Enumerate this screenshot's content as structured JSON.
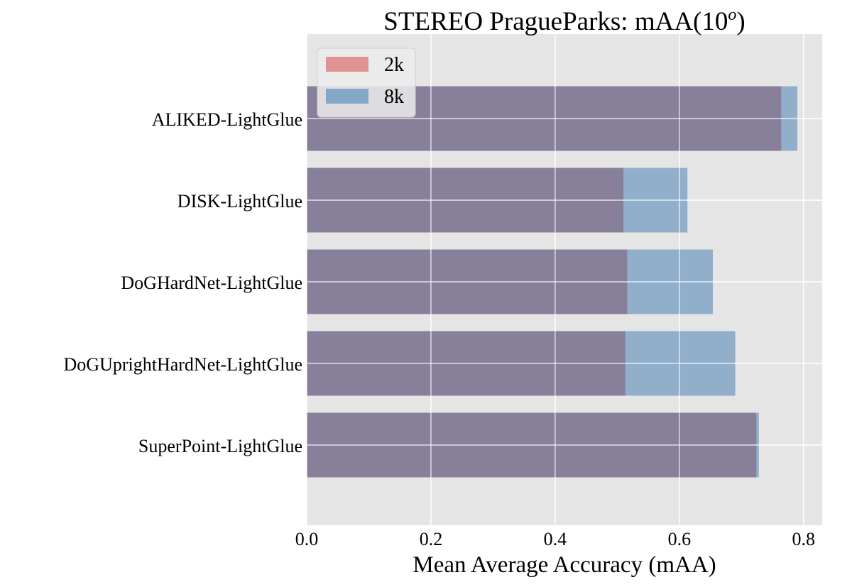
{
  "chart_data": {
    "type": "bar",
    "orientation": "horizontal",
    "title": "STEREO PragueParks: mAA(10",
    "title_superscript": "o",
    "title_suffix": ")",
    "xlabel": "Mean Average Accuracy (mAA)",
    "ylabel": "",
    "xlim": [
      0.0,
      0.83
    ],
    "xticks": [
      0.0,
      0.2,
      0.4,
      0.6,
      0.8
    ],
    "xtick_labels": [
      "0.0",
      "0.2",
      "0.4",
      "0.6",
      "0.8"
    ],
    "categories": [
      "ALIKED-LightGlue",
      "DISK-LightGlue",
      "DoGHardNet-LightGlue",
      "DoGUprightHardNet-LightGlue",
      "SuperPoint-LightGlue"
    ],
    "series": [
      {
        "name": "2k",
        "color": "#e08a87",
        "alpha": 0.85,
        "values": [
          0.764,
          0.51,
          0.516,
          0.513,
          0.724
        ]
      },
      {
        "name": "8k",
        "color": "#7aa0c4",
        "alpha": 0.75,
        "values": [
          0.79,
          0.613,
          0.654,
          0.69,
          0.728
        ]
      }
    ],
    "overlap_color": "#887f9a",
    "grid": true,
    "legend_position": "top-left",
    "background": "#e5e5e5"
  }
}
